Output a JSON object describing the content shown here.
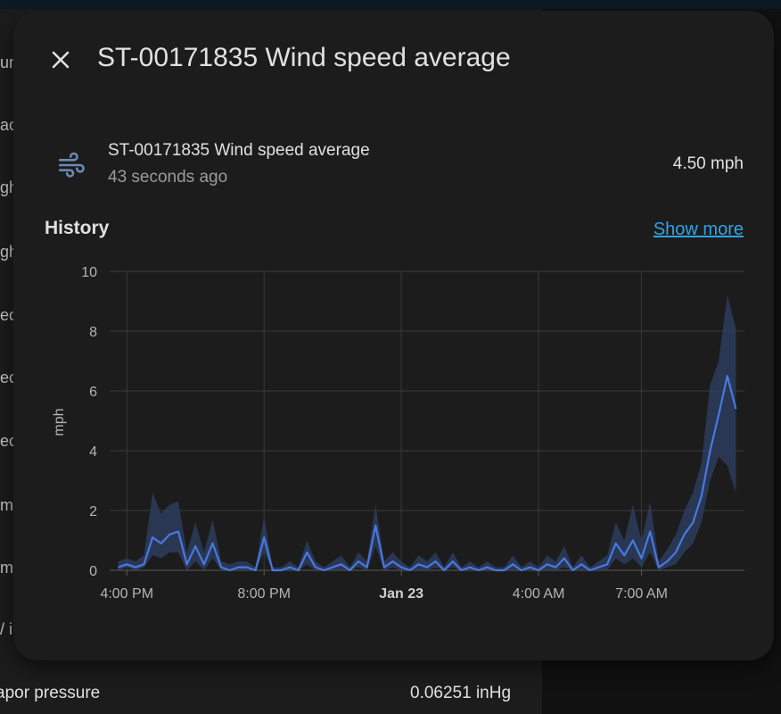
{
  "dialog": {
    "title": "ST-00171835 Wind speed average",
    "close_icon": "close-icon"
  },
  "entity": {
    "icon": "weather-windy-icon",
    "name": "ST-00171835 Wind speed average",
    "last_changed": "43 seconds ago",
    "state": "4.50 mph"
  },
  "history": {
    "title": "History",
    "show_more": "Show more"
  },
  "background": {
    "labels": [
      "un",
      "ac",
      "gh",
      "gh",
      "ec",
      "ec",
      "ec",
      "m",
      "m",
      "/ i"
    ],
    "bottom_row": {
      "label": "apor pressure",
      "value": "0.06251 inHg"
    }
  },
  "colors": {
    "line": "#4a78e0",
    "band": "#2d4066",
    "link": "#2fa4e7"
  },
  "chart_data": {
    "type": "line",
    "ylabel": "mph",
    "ylim": [
      0,
      10
    ],
    "yticks": [
      0,
      2,
      4,
      6,
      8,
      10
    ],
    "xticks": [
      {
        "label": "4:00 PM",
        "bold": false
      },
      {
        "label": "8:00 PM",
        "bold": false
      },
      {
        "label": "Jan 23",
        "bold": true
      },
      {
        "label": "4:00 AM",
        "bold": false
      },
      {
        "label": "7:00 AM",
        "bold": false
      }
    ],
    "x_hours": [
      15.75,
      16.0,
      16.25,
      16.5,
      16.75,
      17.0,
      17.25,
      17.5,
      17.75,
      18.0,
      18.25,
      18.5,
      18.75,
      19.0,
      19.25,
      19.5,
      19.75,
      20.0,
      20.25,
      20.5,
      20.75,
      21.0,
      21.25,
      21.5,
      21.75,
      22.0,
      22.25,
      22.5,
      22.75,
      23.0,
      23.25,
      23.5,
      23.75,
      24.0,
      24.25,
      24.5,
      24.75,
      25.0,
      25.25,
      25.5,
      25.75,
      26.0,
      26.25,
      26.5,
      26.75,
      27.0,
      27.25,
      27.5,
      27.75,
      28.0,
      28.25,
      28.5,
      28.75,
      29.0,
      29.25,
      29.5,
      29.75,
      30.0,
      30.25,
      30.5,
      30.75,
      31.0,
      31.25,
      31.5,
      31.75,
      32.0,
      32.25,
      32.5,
      32.75,
      33.0,
      33.25,
      33.5,
      33.75
    ],
    "series": [
      {
        "values": [
          0.1,
          0.2,
          0.1,
          0.2,
          1.1,
          0.9,
          1.2,
          1.3,
          0.2,
          0.8,
          0.2,
          0.9,
          0.1,
          0.0,
          0.1,
          0.1,
          0.0,
          1.1,
          0.0,
          0.0,
          0.1,
          0.0,
          0.6,
          0.1,
          0.0,
          0.1,
          0.2,
          0.0,
          0.3,
          0.1,
          1.5,
          0.1,
          0.3,
          0.1,
          0.0,
          0.2,
          0.1,
          0.3,
          0.0,
          0.3,
          0.0,
          0.1,
          0.0,
          0.1,
          0.0,
          0.0,
          0.2,
          0.0,
          0.1,
          0.0,
          0.2,
          0.1,
          0.4,
          0.0,
          0.2,
          0.0,
          0.1,
          0.2,
          0.9,
          0.5,
          1.0,
          0.4,
          1.3,
          0.1,
          0.3,
          0.6,
          1.2,
          1.6,
          2.5,
          4.0,
          5.2,
          6.5,
          5.4
        ],
        "min": [
          0.0,
          0.1,
          0.0,
          0.1,
          0.5,
          0.4,
          0.6,
          0.6,
          0.0,
          0.3,
          0.0,
          0.4,
          0.0,
          0.0,
          0.0,
          0.0,
          0.0,
          0.6,
          0.0,
          0.0,
          0.0,
          0.0,
          0.2,
          0.0,
          0.0,
          0.0,
          0.0,
          0.0,
          0.1,
          0.0,
          0.8,
          0.0,
          0.1,
          0.0,
          0.0,
          0.0,
          0.0,
          0.1,
          0.0,
          0.1,
          0.0,
          0.0,
          0.0,
          0.0,
          0.0,
          0.0,
          0.0,
          0.0,
          0.0,
          0.0,
          0.0,
          0.0,
          0.1,
          0.0,
          0.0,
          0.0,
          0.0,
          0.0,
          0.4,
          0.2,
          0.4,
          0.1,
          0.6,
          0.0,
          0.1,
          0.2,
          0.6,
          0.9,
          1.6,
          3.0,
          3.8,
          3.5,
          2.6
        ],
        "max": [
          0.3,
          0.4,
          0.3,
          0.5,
          2.6,
          1.9,
          2.2,
          2.3,
          0.6,
          1.6,
          0.6,
          1.7,
          0.3,
          0.2,
          0.3,
          0.3,
          0.1,
          1.8,
          0.1,
          0.1,
          0.3,
          0.1,
          1.0,
          0.3,
          0.1,
          0.3,
          0.5,
          0.1,
          0.6,
          0.3,
          2.2,
          0.3,
          0.6,
          0.3,
          0.1,
          0.5,
          0.3,
          0.6,
          0.1,
          0.6,
          0.1,
          0.3,
          0.1,
          0.3,
          0.1,
          0.1,
          0.5,
          0.1,
          0.3,
          0.1,
          0.5,
          0.3,
          0.8,
          0.1,
          0.5,
          0.1,
          0.3,
          0.5,
          1.6,
          1.0,
          2.2,
          1.0,
          2.3,
          0.3,
          0.7,
          1.2,
          2.0,
          2.6,
          3.6,
          6.2,
          7.0,
          9.2,
          8.1
        ]
      }
    ]
  }
}
